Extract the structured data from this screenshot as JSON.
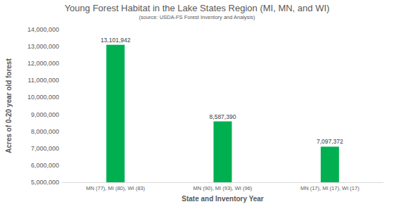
{
  "chart_data": {
    "type": "bar",
    "title": "Young Forest Habitat in the Lake States Region (MI, MN, and WI)",
    "subtitle": "(source: USDA-FS Forest Inventory and Analysis)",
    "x_label": "State and Inventory Year",
    "y_label": "Acres of 0-20 year old forest",
    "categories": [
      "MN (77), MI (80), WI (83)",
      "MN (90), MI (93), WI (96)",
      "MN (17), MI (17), WI (17)"
    ],
    "values": [
      13101942,
      8587390,
      7097372
    ],
    "value_labels": [
      "13,101,942",
      "8,587,390",
      "7,097,372"
    ],
    "color": "#00b050",
    "ylim": [
      5000000,
      14000000
    ],
    "yticks": [
      {
        "value": 5000000,
        "label": "5,000,000"
      },
      {
        "value": 6000000,
        "label": "6,000,000"
      },
      {
        "value": 7000000,
        "label": "7,000,000"
      },
      {
        "value": 8000000,
        "label": "8,000,000"
      },
      {
        "value": 9000000,
        "label": "9,000,000"
      },
      {
        "value": 10000000,
        "label": "10,000,000"
      },
      {
        "value": 11000000,
        "label": "11,000,000"
      },
      {
        "value": 12000000,
        "label": "12,000,000"
      },
      {
        "value": 13000000,
        "label": "13,000,000"
      },
      {
        "value": 14000000,
        "label": "14,000,000"
      }
    ],
    "grid": false,
    "data_labels": true
  }
}
